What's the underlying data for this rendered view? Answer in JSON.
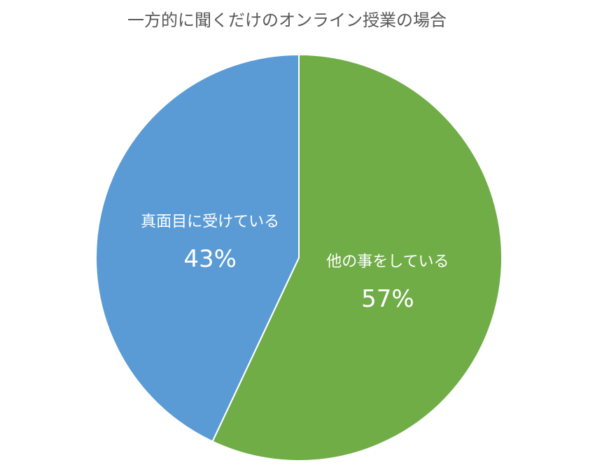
{
  "chart_data": {
    "type": "pie",
    "title": "一方的に聞くだけのオンライン授業の場合",
    "categories": [
      "他の事をしている",
      "真面目に受けている"
    ],
    "values": [
      57,
      43
    ],
    "value_labels": [
      "57%",
      "43%"
    ],
    "colors": [
      "#70ad47",
      "#5b9bd5"
    ]
  }
}
